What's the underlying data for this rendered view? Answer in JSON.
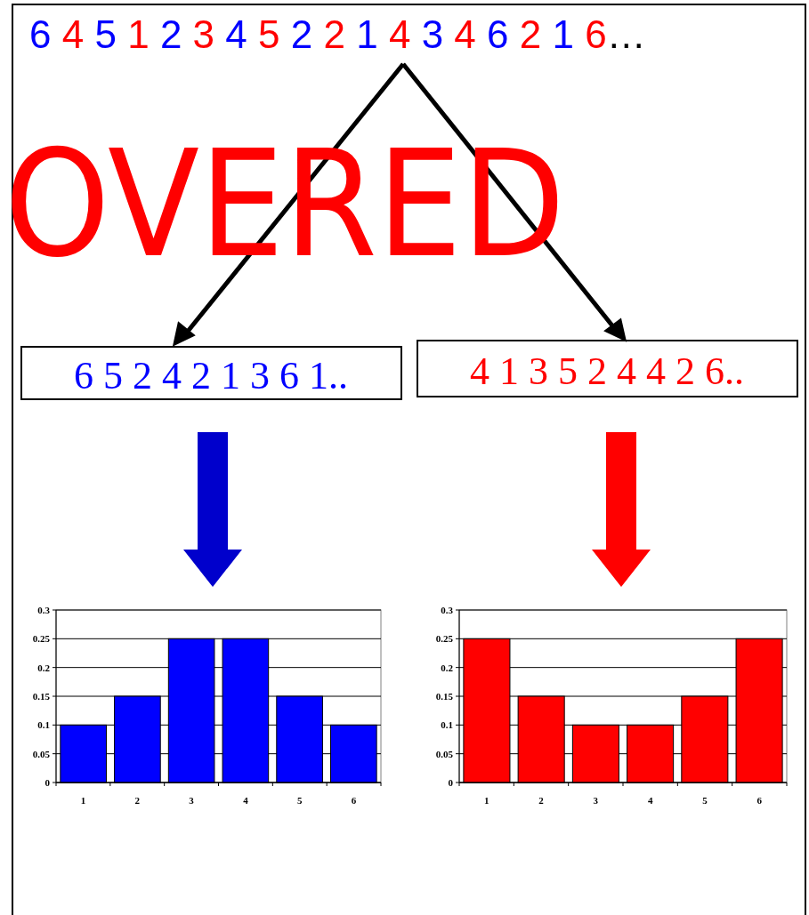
{
  "chart_data": [
    {
      "type": "bar",
      "categories": [
        "1",
        "2",
        "3",
        "4",
        "5",
        "6"
      ],
      "values": [
        0.1,
        0.15,
        0.25,
        0.25,
        0.15,
        0.1
      ],
      "color": "#0000ff",
      "ylim": [
        0,
        0.3
      ],
      "yticks": [
        0,
        0.05,
        0.1,
        0.15,
        0.2,
        0.25,
        0.3
      ],
      "grid": "y",
      "annotations": [
        "6 4 5 1 2 3 4 5 2 2 1 4 3 4 6 2 1 6…",
        "OVERED",
        "6 5 2 4 2 1 3 6 1.."
      ]
    },
    {
      "type": "bar",
      "categories": [
        "1",
        "2",
        "3",
        "4",
        "5",
        "6"
      ],
      "values": [
        0.25,
        0.15,
        0.1,
        0.1,
        0.15,
        0.25
      ],
      "color": "#ff0000",
      "ylim": [
        0,
        0.3
      ],
      "yticks": [
        0,
        0.05,
        0.1,
        0.15,
        0.2,
        0.25,
        0.3
      ],
      "grid": "y",
      "annotations": [
        "4 1 3 5 2 4 4 2 6.."
      ]
    }
  ]
}
